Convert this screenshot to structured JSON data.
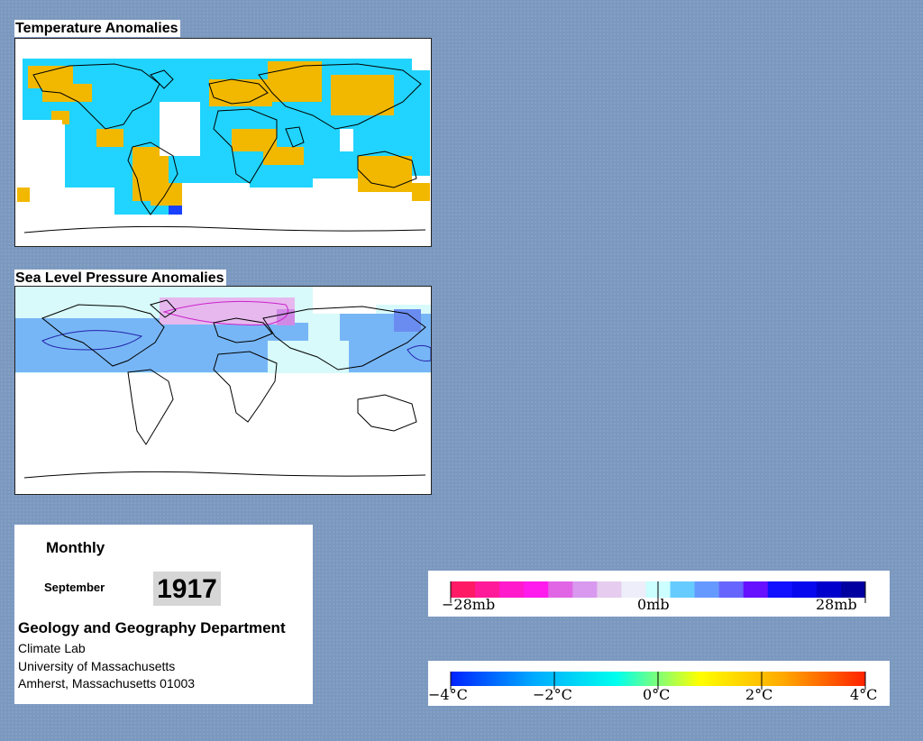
{
  "panels": {
    "temperature": {
      "title": "Temperature Anomalies"
    },
    "pressure": {
      "title": "Sea Level Pressure Anomalies"
    }
  },
  "info": {
    "mode": "Monthly",
    "month": "September",
    "year": "1917",
    "department": "Geology and Geography Department",
    "lab": "Climate Lab",
    "university": "University of Massachusetts",
    "address": "Amherst, Massachusetts 01003"
  },
  "legends": {
    "pressure": {
      "unit": "mb",
      "range": [
        -28,
        28
      ],
      "labels": [
        "−28mb",
        "0mb",
        "28mb"
      ],
      "colors": [
        "#ff1a66",
        "#ff1a99",
        "#ff1acc",
        "#ff1aee",
        "#e066e6",
        "#d899ee",
        "#e6ccee",
        "#eeeefa",
        "#ccffff",
        "#66ccff",
        "#6699ff",
        "#6666ff",
        "#6611ff",
        "#1111ff",
        "#0808ee",
        "#0000cc",
        "#0000a0"
      ]
    },
    "temperature": {
      "unit": "°C",
      "range": [
        -4,
        4
      ],
      "labels": [
        "−4°C",
        "−2°C",
        "0°C",
        "2°C",
        "4°C"
      ],
      "colors": [
        "#0022ff",
        "#00aaff",
        "#00ffee",
        "#ffff00",
        "#ffaa00",
        "#ff2200"
      ]
    }
  },
  "colors": {
    "background": "#7b98bf",
    "temp_warm": "#f2b800",
    "temp_cool": "#20d4ff",
    "temp_cold": "#1a40ff",
    "slp_low": "#77b6f6",
    "slp_neutral": "#d8fafa",
    "slp_high": "#e6b8ee"
  }
}
